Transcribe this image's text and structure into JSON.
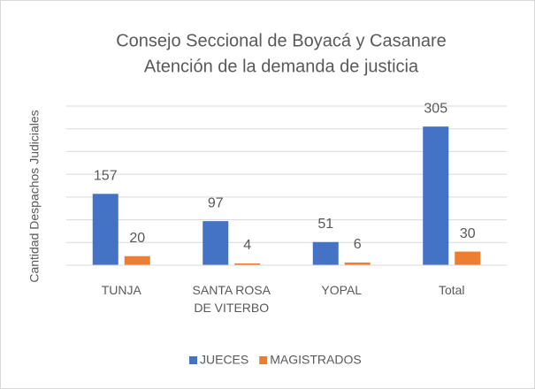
{
  "chart_data": {
    "type": "bar",
    "title": [
      "Consejo Seccional de Boyacá y Casanare",
      "Atención de la demanda de justicia"
    ],
    "y_label": "Cantidad Despachos Judiciales",
    "categories": [
      "TUNJA",
      "SANTA ROSA DE VITERBO",
      "YOPAL",
      "Total"
    ],
    "series": [
      {
        "name": "JUECES",
        "color": "#4472c4",
        "values": [
          157,
          97,
          51,
          305
        ]
      },
      {
        "name": "MAGISTRADOS",
        "color": "#ed7d31",
        "values": [
          20,
          4,
          6,
          30
        ]
      }
    ],
    "ylim": [
      0,
      350
    ],
    "yticks": [
      0,
      50,
      100,
      150,
      200,
      250,
      300,
      350
    ],
    "grid": true,
    "legend": "bottom"
  }
}
